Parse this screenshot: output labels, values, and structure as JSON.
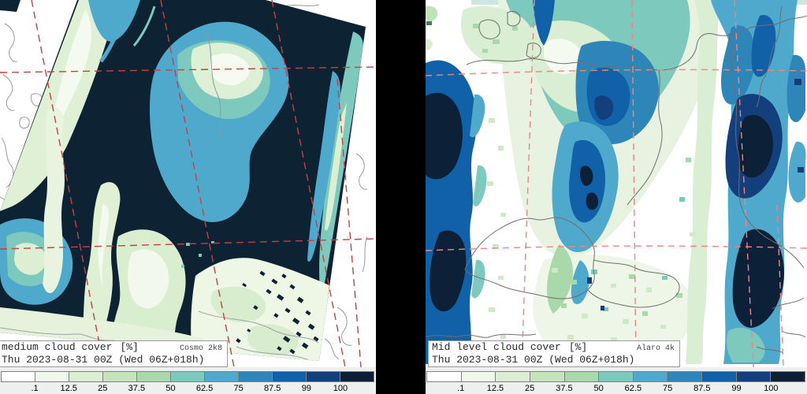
{
  "colorbar": {
    "ticks": [
      ".1",
      "12.5",
      "25",
      "37.5",
      "50",
      "62.5",
      "75",
      "87.5",
      "99",
      "100"
    ],
    "colors": [
      "#ffffff",
      "#eff8ea",
      "#dbeed3",
      "#c5e4bc",
      "#a9d8ab",
      "#7dc9bd",
      "#4ea9cd",
      "#2e86b8",
      "#1161a8",
      "#143f7d",
      "#0c1f35"
    ]
  },
  "panels": [
    {
      "title": "medium cloud cover",
      "units": "[%]",
      "model": "Cosmo 2k8",
      "valid": "Thu 2023-08-31 00Z (Wed 06Z+018h)"
    },
    {
      "title": "Mid level cloud cover",
      "units": "[%]",
      "model": "Alaro 4k",
      "valid": "Thu 2023-08-31 00Z (Wed 06Z+018h)"
    }
  ],
  "map_style": {
    "domain_fill": "#0d2233",
    "graticule_left": "#c74040",
    "graticule_right": "#ee8585",
    "border_gray": "#6f6f6f",
    "strip_background": "#efefef"
  }
}
